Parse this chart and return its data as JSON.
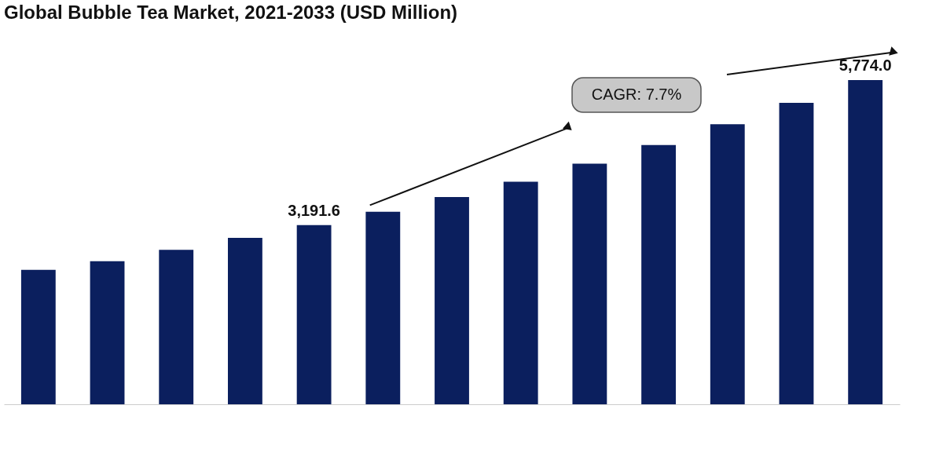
{
  "chart_data": {
    "type": "bar",
    "title": "Global Bubble Tea Market, 2021-2033 (USD Million)",
    "categories": [
      null,
      null,
      null,
      null,
      null,
      null,
      null,
      null,
      null,
      null,
      null,
      null,
      null
    ],
    "tick_labels": false,
    "values": [
      2393,
      2548,
      2750,
      2964,
      3191.6,
      3429,
      3691,
      3964,
      4286,
      4619,
      4988,
      5369,
      5774.0
    ],
    "value_labels": [
      null,
      null,
      null,
      null,
      "3,191.6",
      null,
      null,
      null,
      null,
      null,
      null,
      null,
      "5,774.0"
    ],
    "color": "#0b1f5e",
    "annotations": [
      "CAGR: 7.7%"
    ],
    "grid": false
  }
}
